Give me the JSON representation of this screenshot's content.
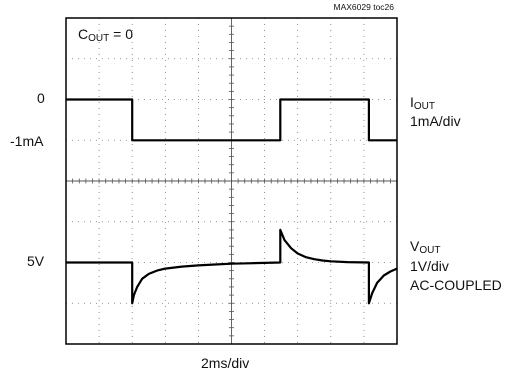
{
  "chart_data": {
    "type": "line",
    "title": "",
    "figure_id": "MAX6029 toc26",
    "condition": {
      "symbol": "C",
      "subscript": "OUT",
      "text": " = 0"
    },
    "xlabel": "2ms/div",
    "x_unit": "ms",
    "xlim": [
      0,
      20
    ],
    "grid": true,
    "series": [
      {
        "name": "IOUT",
        "label_main": "I",
        "label_sub": "OUT",
        "scale_label": "1mA/div",
        "unit": "mA",
        "ylim": [
          -2,
          2
        ],
        "x": [
          0,
          4.0,
          4.0,
          12.95,
          12.95,
          18.3,
          18.3,
          20
        ],
        "values": [
          0,
          0,
          -1,
          -1,
          0,
          0,
          -1,
          -1
        ],
        "level_labels": [
          {
            "text": "0",
            "value": 0
          },
          {
            "text": "-1mA",
            "value": -1
          }
        ]
      },
      {
        "name": "VOUT",
        "label_main": "V",
        "label_sub": "OUT",
        "scale_label": "1V/div",
        "coupling": "AC-COUPLED",
        "unit": "V",
        "ylim": [
          3,
          7
        ],
        "x": [
          0,
          4.0,
          4.0,
          4.1,
          4.3,
          4.6,
          5.0,
          5.5,
          6.0,
          7.0,
          8.0,
          9.0,
          10.0,
          11.0,
          12.0,
          12.95,
          12.95,
          13.2,
          13.6,
          14.0,
          14.5,
          15.0,
          15.5,
          16.0,
          17.0,
          18.3,
          18.3,
          18.5,
          18.8,
          19.2,
          19.6,
          20
        ],
        "values": [
          5,
          5,
          4,
          4.2,
          4.4,
          4.6,
          4.72,
          4.8,
          4.85,
          4.9,
          4.93,
          4.95,
          4.97,
          4.98,
          4.99,
          5,
          5.8,
          5.55,
          5.35,
          5.22,
          5.13,
          5.08,
          5.05,
          5.03,
          5.01,
          5,
          4,
          4.25,
          4.5,
          4.68,
          4.78,
          4.85
        ],
        "level_labels": [
          {
            "text": "5V",
            "value": 5
          }
        ]
      }
    ]
  }
}
